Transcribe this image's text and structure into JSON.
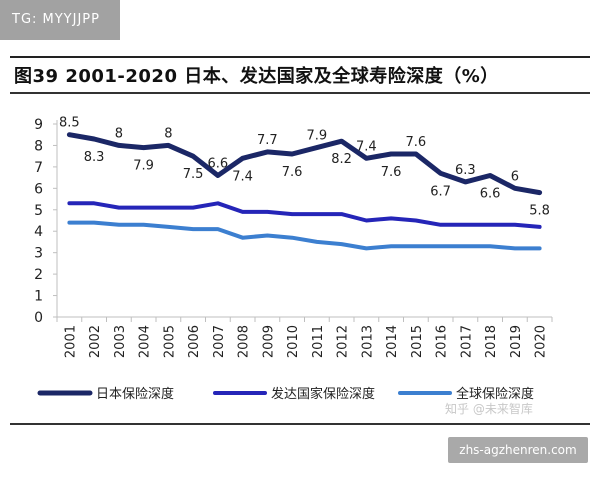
{
  "tag": "TG: MYYJJPP",
  "title": "图39 2001-2020 日本、发达国家及全球寿险深度（%）",
  "watermark": "知乎 @未来智库",
  "site": "zhs-agzhenren.com",
  "chart_data": {
    "type": "line",
    "x": [
      "2001",
      "2002",
      "2003",
      "2004",
      "2005",
      "2006",
      "2007",
      "2008",
      "2009",
      "2010",
      "2011",
      "2012",
      "2013",
      "2014",
      "2015",
      "2016",
      "2017",
      "2018",
      "2019",
      "2020"
    ],
    "ylim": [
      0,
      9
    ],
    "yticks": [
      0,
      1,
      2,
      3,
      4,
      5,
      6,
      7,
      8,
      9
    ],
    "legend_position": "bottom",
    "series": [
      {
        "name": "日本保险深度",
        "color": "#1b2766",
        "values": [
          8.5,
          8.3,
          8.0,
          7.9,
          8.0,
          7.5,
          6.6,
          7.4,
          7.7,
          7.6,
          7.9,
          8.2,
          7.4,
          7.6,
          7.6,
          6.7,
          6.3,
          6.6,
          6.0,
          5.8
        ],
        "labels": [
          "8.5",
          "8.3",
          "8",
          "7.9",
          "8",
          "7.5",
          "6.6",
          "7.4",
          "7.7",
          "7.6",
          "7.9",
          "8.2",
          "7.4",
          "7.6",
          "7.6",
          "6.7",
          "6.3",
          "6.6",
          "6",
          "5.8"
        ]
      },
      {
        "name": "发达国家保险深度",
        "color": "#2525b8",
        "values": [
          5.3,
          5.3,
          5.1,
          5.1,
          5.1,
          5.1,
          5.3,
          4.9,
          4.9,
          4.8,
          4.8,
          4.8,
          4.5,
          4.6,
          4.5,
          4.3,
          4.3,
          4.3,
          4.3,
          4.2
        ]
      },
      {
        "name": "全球保险深度",
        "color": "#3c7fd0",
        "values": [
          4.4,
          4.4,
          4.3,
          4.3,
          4.2,
          4.1,
          4.1,
          3.7,
          3.8,
          3.7,
          3.5,
          3.4,
          3.2,
          3.3,
          3.3,
          3.3,
          3.3,
          3.3,
          3.2,
          3.2
        ]
      }
    ]
  }
}
